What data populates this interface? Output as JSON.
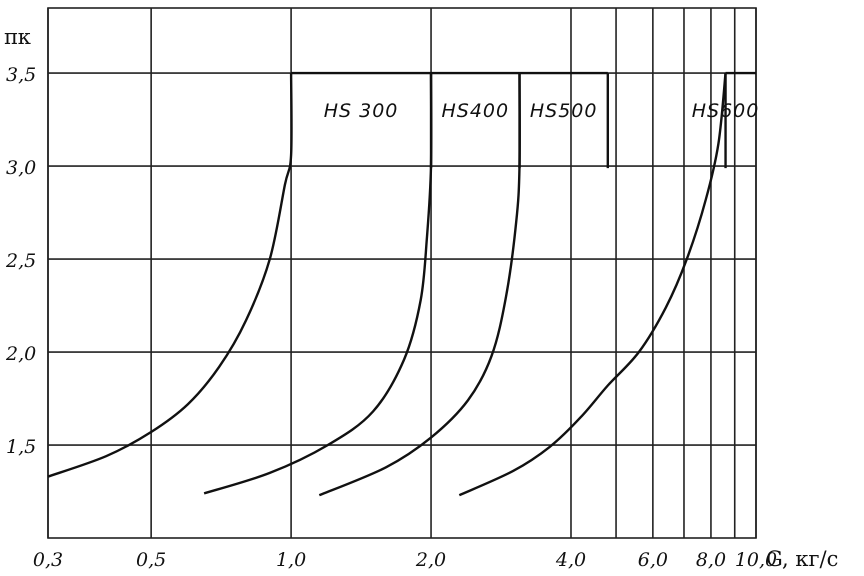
{
  "chart_data": {
    "type": "line",
    "ylabel": "πк",
    "xlabel": "G, кг/с",
    "x_scale": "log",
    "xlim": [
      0.3,
      10.0
    ],
    "ylim": [
      1.0,
      3.85
    ],
    "grid": true,
    "x_ticks": [
      0.3,
      0.5,
      1.0,
      2.0,
      4.0,
      6.0,
      8.0,
      10.0
    ],
    "x_tick_labels": [
      "0,3",
      "0,5",
      "1,0",
      "2,0",
      "4,0",
      "6,0",
      "8,0",
      "10,0"
    ],
    "y_ticks": [
      1.5,
      2.0,
      2.5,
      3.0,
      3.5
    ],
    "y_tick_labels": [
      "1,5",
      "2,0",
      "2,5",
      "3,0",
      "3,5"
    ],
    "x_extra_gridlines": [
      5.0,
      7.0,
      9.0
    ],
    "series": [
      {
        "name": "HS300",
        "label": "HS 300",
        "x_right": 2.0,
        "points": [
          [
            0.3,
            1.33
          ],
          [
            0.4,
            1.44
          ],
          [
            0.5,
            1.57
          ],
          [
            0.6,
            1.72
          ],
          [
            0.7,
            1.92
          ],
          [
            0.8,
            2.17
          ],
          [
            0.9,
            2.5
          ],
          [
            0.97,
            2.9
          ],
          [
            1.0,
            3.06
          ],
          [
            1.0,
            3.5
          ]
        ]
      },
      {
        "name": "HS400",
        "label": "HS400",
        "x_right": 3.1,
        "points": [
          [
            0.65,
            1.24
          ],
          [
            0.9,
            1.35
          ],
          [
            1.2,
            1.5
          ],
          [
            1.5,
            1.68
          ],
          [
            1.75,
            1.96
          ],
          [
            1.9,
            2.28
          ],
          [
            1.96,
            2.62
          ],
          [
            2.0,
            3.0
          ],
          [
            2.0,
            3.5
          ]
        ]
      },
      {
        "name": "HS500",
        "label": "HS500",
        "x_right": 4.8,
        "points": [
          [
            1.15,
            1.23
          ],
          [
            1.6,
            1.38
          ],
          [
            2.0,
            1.54
          ],
          [
            2.4,
            1.74
          ],
          [
            2.7,
            1.98
          ],
          [
            2.9,
            2.3
          ],
          [
            3.05,
            2.7
          ],
          [
            3.1,
            3.0
          ],
          [
            3.1,
            3.5
          ]
        ]
      },
      {
        "name": "HS600",
        "label": "HS600",
        "x_right": 8.6,
        "points": [
          [
            2.3,
            1.23
          ],
          [
            3.0,
            1.36
          ],
          [
            3.6,
            1.49
          ],
          [
            4.2,
            1.65
          ],
          [
            4.8,
            1.82
          ],
          [
            5.6,
            2.0
          ],
          [
            6.4,
            2.24
          ],
          [
            7.1,
            2.5
          ],
          [
            7.8,
            2.82
          ],
          [
            8.3,
            3.12
          ],
          [
            8.6,
            3.5
          ]
        ]
      }
    ]
  }
}
